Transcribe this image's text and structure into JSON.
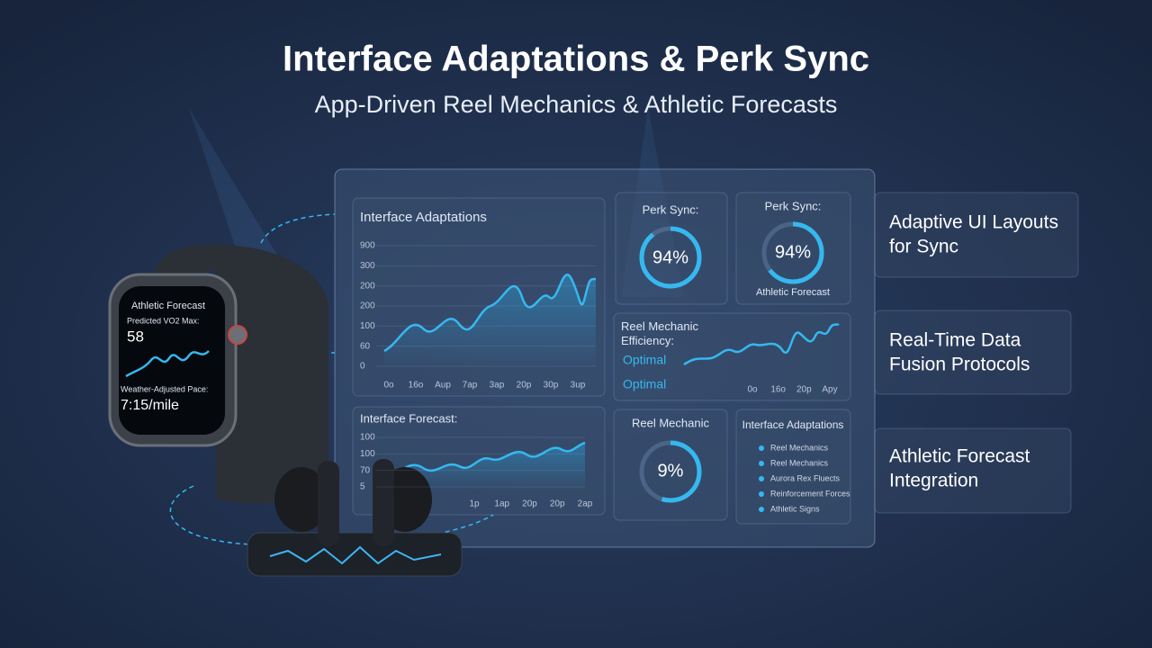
{
  "header": {
    "title": "Interface Adaptations & Perk Sync",
    "subtitle": "App-Driven Reel Mechanics & Athletic Forecasts"
  },
  "watch": {
    "title": "Athletic Forecast",
    "metric_label": "Predicted VO2 Max:",
    "metric_value": "58",
    "pace_label": "Weather-Adjusted Pace:",
    "pace_value": "7:15/mile"
  },
  "dashboard": {
    "main_chart": {
      "title": "Interface Adaptations",
      "y_labels": [
        "900",
        "300",
        "200",
        "200",
        "100",
        "60",
        "0"
      ],
      "x_labels": [
        "0o",
        "16o",
        "Aup",
        "7ap",
        "3ap",
        "20p",
        "30p",
        "3up"
      ]
    },
    "gauge_1": {
      "title": "Perk Sync:",
      "value": "94%"
    },
    "gauge_2": {
      "title": "Perk Sync:",
      "value": "94%",
      "caption": "Athletic Forecast"
    },
    "reel_panel": {
      "title": "Reel Mechanic Efficiency:",
      "status_1": "Optimal",
      "status_2": "Optimal",
      "x_labels": [
        "0o",
        "16o",
        "20p",
        "Apy"
      ]
    },
    "forecast_chart": {
      "title": "Interface Forecast:",
      "y_labels": [
        "100",
        "100",
        "70",
        "5"
      ],
      "x_labels": [
        "1p",
        "1ap",
        "20p",
        "20p",
        "2ap"
      ]
    },
    "gauge_3": {
      "title": "Reel Mechanic",
      "value": "9%"
    },
    "list_panel": {
      "title": "Interface Adaptations",
      "items": [
        "Reel Mechanics",
        "Reel Mechanics",
        "Aurora Rex Fluects",
        "Reinforcement Forces",
        "Athletic Signs"
      ]
    }
  },
  "cards": [
    {
      "lines": [
        "Adaptive UI Layouts",
        "for Sync"
      ]
    },
    {
      "lines": [
        "Real-Time Data",
        "Fusion Protocols"
      ]
    },
    {
      "lines": [
        "Athletic Forecast",
        "Integration"
      ]
    }
  ]
}
